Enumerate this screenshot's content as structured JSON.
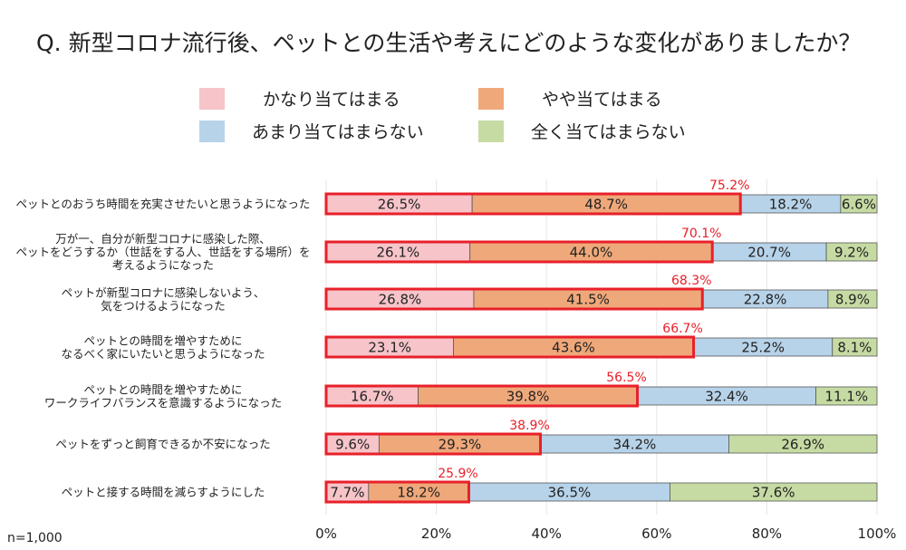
{
  "chart_data": {
    "type": "bar",
    "stacked": true,
    "orientation": "horizontal",
    "title": "Q. 新型コロナ流行後、ペットとの生活や考えにどのような変化がありましたか？",
    "note": "n=1,000",
    "xlim": [
      0,
      100
    ],
    "x_ticks": [
      "0%",
      "20%",
      "40%",
      "60%",
      "80%",
      "100%"
    ],
    "grid": true,
    "legend_position": "top",
    "categories": [
      [
        "ペットとのおうち時間を充実させたいと思うようになった"
      ],
      [
        "万が一、自分が新型コロナに感染した際、",
        "ペットをどうするか（世話をする人、世話をする場所）を",
        "考えるようになった"
      ],
      [
        "ペットが新型コロナに感染しないよう、",
        "気をつけるようになった"
      ],
      [
        "ペットとの時間を増やすために",
        "なるべく家にいたいと思うようになった"
      ],
      [
        "ペットとの時間を増やすために",
        "ワークライフバランスを意識するようになった"
      ],
      [
        "ペットをずっと飼育できるか不安になった"
      ],
      [
        "ペットと接する時間を減らすようにした"
      ]
    ],
    "series": [
      {
        "name": "かなり当てはまる",
        "color": "#f6c4c9",
        "values": [
          26.5,
          26.1,
          26.8,
          23.1,
          16.7,
          9.6,
          7.7
        ],
        "labels": [
          "26.5%",
          "26.1%",
          "26.8%",
          "23.1%",
          "16.7%",
          "9.6%",
          "7.7%"
        ]
      },
      {
        "name": "やや当てはまる",
        "color": "#efa87a",
        "values": [
          48.7,
          44.0,
          41.5,
          43.6,
          39.8,
          29.3,
          18.2
        ],
        "labels": [
          "48.7%",
          "44.0%",
          "41.5%",
          "43.6%",
          "39.8%",
          "29.3%",
          "18.2%"
        ]
      },
      {
        "name": "あまり当てはまらない",
        "color": "#b7d3e9",
        "values": [
          18.2,
          20.7,
          22.8,
          25.2,
          32.4,
          34.2,
          36.5
        ],
        "labels": [
          "18.2%",
          "20.7%",
          "22.8%",
          "25.2%",
          "32.4%",
          "34.2%",
          "36.5%"
        ]
      },
      {
        "name": "全く当てはまらない",
        "color": "#c6dba3",
        "values": [
          6.6,
          9.2,
          8.9,
          8.1,
          11.1,
          26.9,
          37.6
        ],
        "labels": [
          "6.6%",
          "9.2%",
          "8.9%",
          "8.1%",
          "11.1%",
          "26.9%",
          "37.6%"
        ]
      }
    ],
    "top2_totals": [
      75.2,
      70.1,
      68.3,
      66.7,
      56.5,
      38.9,
      25.9
    ],
    "top2_labels": [
      "75.2%",
      "70.1%",
      "68.3%",
      "66.7%",
      "56.5%",
      "38.9%",
      "25.9%"
    ],
    "highlight_color": "#e8202a"
  }
}
